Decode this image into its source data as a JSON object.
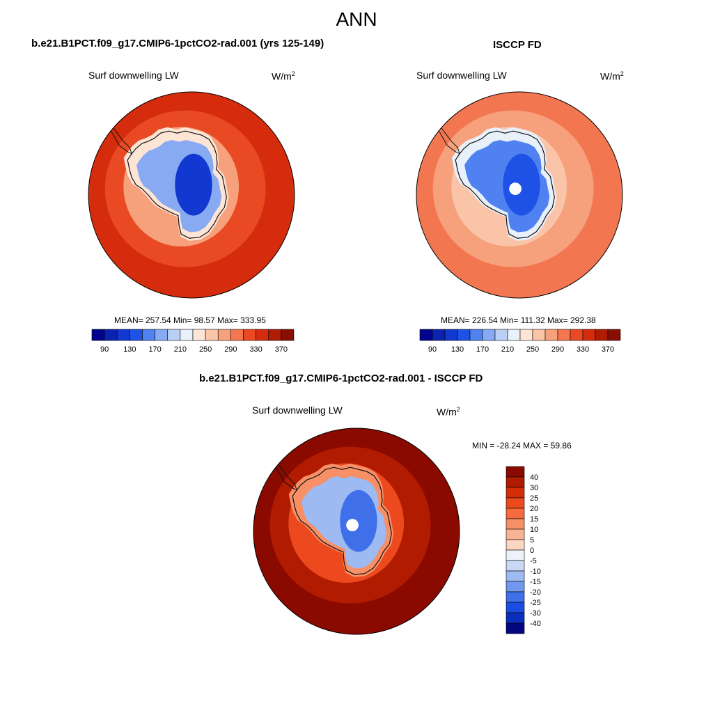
{
  "figure": {
    "title": "ANN"
  },
  "panels": [
    {
      "title": "b.e21.B1PCT.f09_g17.CMIP6-1pctCO2-rad.001 (yrs 125-149)",
      "variable": "Surf downwelling LW",
      "units_base": "W/m",
      "units_exp": "2",
      "stats_text": "MEAN= 257.54  Min=  98.57  Max= 333.95"
    },
    {
      "title": "ISCCP FD",
      "variable": "Surf downwelling LW",
      "units_base": "W/m",
      "units_exp": "2",
      "stats_text": "MEAN= 226.54  Min= 111.32  Max= 292.38"
    },
    {
      "title": "b.e21.B1PCT.f09_g17.CMIP6-1pctCO2-rad.001 - ISCCP FD",
      "variable": "Surf downwelling LW",
      "units_base": "W/m",
      "units_exp": "2",
      "stats_text": "MIN = -28.24 MAX =  59.86"
    }
  ],
  "chart_data": [
    {
      "type": "heatmap",
      "map_projection": "south-polar-stereographic",
      "title": "b.e21.B1PCT.f09_g17.CMIP6-1pctCO2-rad.001 (yrs 125-149)",
      "variable": "Surf downwelling LW",
      "units": "W/m2",
      "mean": 257.54,
      "min": 98.57,
      "max": 333.95,
      "colorbar": {
        "orientation": "horizontal",
        "tick_labels": [
          "90",
          "130",
          "170",
          "210",
          "250",
          "290",
          "330",
          "370"
        ],
        "levels": [
          90,
          110,
          130,
          150,
          170,
          190,
          210,
          230,
          250,
          270,
          290,
          310,
          330,
          350,
          370
        ],
        "colors": [
          "#02048e",
          "#0a23b0",
          "#1238d2",
          "#1e52e6",
          "#4f82f0",
          "#88aaf2",
          "#b9cff4",
          "#e8f0fa",
          "#fde5d6",
          "#f9c4a8",
          "#f6a07c",
          "#f27751",
          "#e94a24",
          "#d42c0c",
          "#ae1c03",
          "#8a0d01"
        ]
      },
      "field_levels": {
        "ocean_north": 330,
        "ocean_south": 310,
        "ice_edge": 270,
        "coast": 230,
        "interior": 170,
        "dome": 110
      }
    },
    {
      "type": "heatmap",
      "map_projection": "south-polar-stereographic",
      "title": "ISCCP FD",
      "variable": "Surf downwelling LW",
      "units": "W/m2",
      "mean": 226.54,
      "min": 111.32,
      "max": 292.38,
      "colorbar": {
        "orientation": "horizontal",
        "tick_labels": [
          "90",
          "130",
          "170",
          "210",
          "250",
          "290",
          "330",
          "370"
        ],
        "levels": [
          90,
          110,
          130,
          150,
          170,
          190,
          210,
          230,
          250,
          270,
          290,
          310,
          330,
          350,
          370
        ],
        "colors": [
          "#02048e",
          "#0a23b0",
          "#1238d2",
          "#1e52e6",
          "#4f82f0",
          "#88aaf2",
          "#b9cff4",
          "#e8f0fa",
          "#fde5d6",
          "#f9c4a8",
          "#f6a07c",
          "#f27751",
          "#e94a24",
          "#d42c0c",
          "#ae1c03",
          "#8a0d01"
        ]
      },
      "field_levels": {
        "ocean_north": 290,
        "ocean_south": 270,
        "ice_edge": 250,
        "coast": 210,
        "interior": 150,
        "dome": 130
      },
      "missing_at_pole": true
    },
    {
      "type": "heatmap",
      "map_projection": "south-polar-stereographic",
      "title": "b.e21.B1PCT.f09_g17.CMIP6-1pctCO2-rad.001 - ISCCP FD",
      "variable": "Surf downwelling LW",
      "units": "W/m2",
      "min": -28.24,
      "max": 59.86,
      "colorbar": {
        "orientation": "vertical",
        "tick_labels": [
          "40",
          "30",
          "25",
          "20",
          "15",
          "10",
          "5",
          "0",
          "-5",
          "-10",
          "-15",
          "-20",
          "-25",
          "-30",
          "-40"
        ],
        "colors": [
          "#8b0a00",
          "#b11b00",
          "#d42e09",
          "#ec4a1e",
          "#f66a3d",
          "#f78f67",
          "#f9b394",
          "#fbd6c2",
          "#eef2fa",
          "#c9d9f5",
          "#9dbaf2",
          "#6f98ee",
          "#3f70ea",
          "#1b4ee0",
          "#0b2fbd",
          "#02077f"
        ]
      },
      "field_levels": {
        "ocean_north": 59.86,
        "ocean_south": 35,
        "coast": 12,
        "interior": -10,
        "min_region": -28.24
      },
      "missing_at_pole": true
    }
  ]
}
